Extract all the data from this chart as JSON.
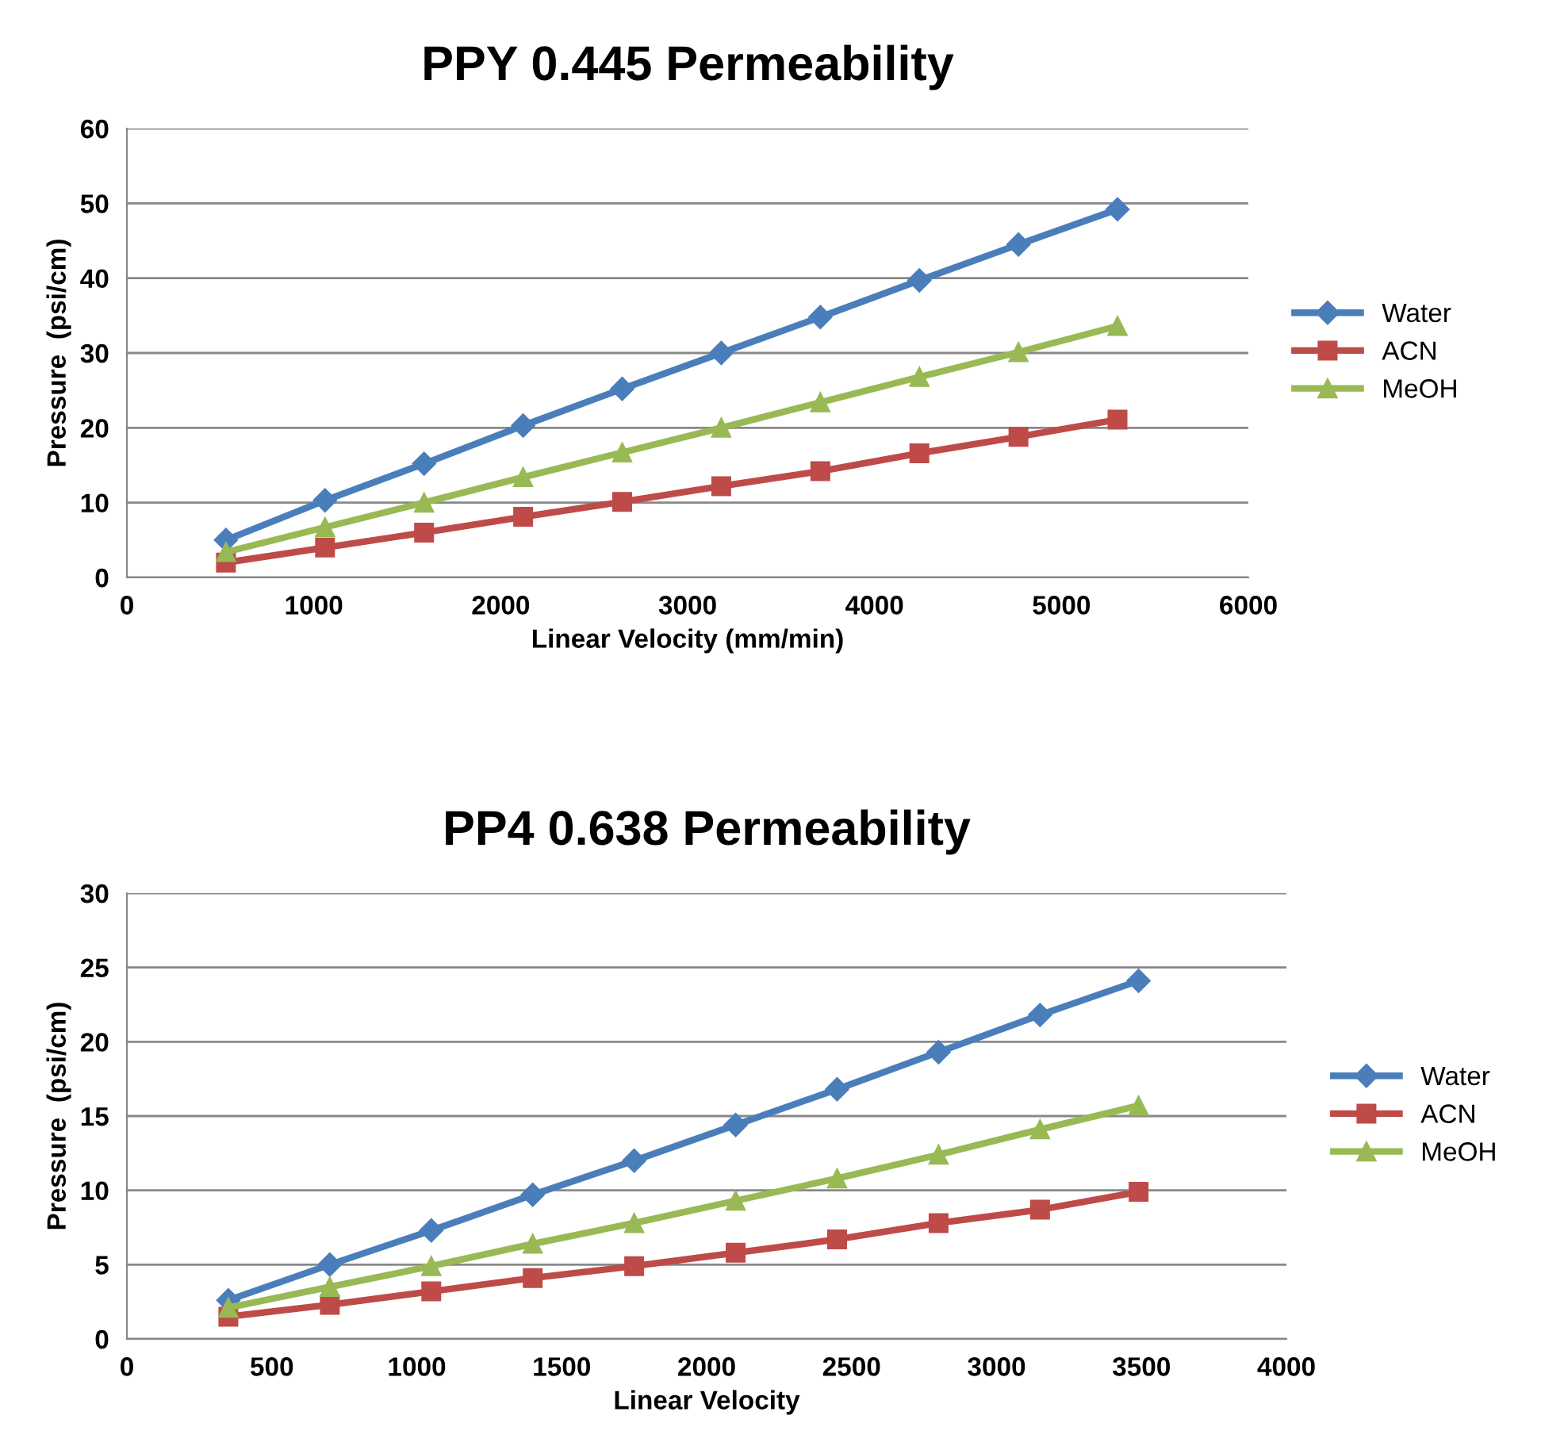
{
  "chart_data": [
    {
      "type": "line",
      "title": "PPY 0.445 Permeability",
      "xlabel": "Linear Velocity (mm/min)",
      "ylabel": "Pressure  (psi/cm)",
      "x": [
        530,
        1060,
        1590,
        2120,
        2650,
        3180,
        3710,
        4240,
        4770,
        5300
      ],
      "series": [
        {
          "name": "Water",
          "color": "#4a7ebb",
          "marker": "diamond",
          "values": [
            5,
            10.3,
            15.2,
            20.3,
            25.2,
            30,
            34.8,
            39.7,
            44.5,
            49.2
          ]
        },
        {
          "name": "ACN",
          "color": "#be4b48",
          "marker": "square",
          "values": [
            2,
            4,
            6,
            8.1,
            10.1,
            12.2,
            14.2,
            16.6,
            18.8,
            21.1
          ]
        },
        {
          "name": "MeOH",
          "color": "#98b954",
          "marker": "triangle",
          "values": [
            3.4,
            6.7,
            10,
            13.4,
            16.7,
            20,
            23.4,
            26.8,
            30.1,
            33.6
          ]
        }
      ],
      "xlim": [
        0,
        6000
      ],
      "xticks": [
        0,
        1000,
        2000,
        3000,
        4000,
        5000,
        6000
      ],
      "ylim": [
        0,
        60
      ],
      "yticks": [
        0,
        10,
        20,
        30,
        40,
        50,
        60
      ],
      "grid": "y",
      "legend": "right"
    },
    {
      "type": "line",
      "title": "PP4 0.638 Permeability",
      "xlabel": "Linear Velocity",
      "ylabel": "Pressure  (psi/cm)",
      "x": [
        350,
        700,
        1050,
        1400,
        1750,
        2100,
        2450,
        2800,
        3150,
        3490
      ],
      "series": [
        {
          "name": "Water",
          "color": "#4a7ebb",
          "marker": "diamond",
          "values": [
            2.6,
            5,
            7.3,
            9.7,
            12,
            14.4,
            16.8,
            19.3,
            21.8,
            24.1
          ]
        },
        {
          "name": "ACN",
          "color": "#be4b48",
          "marker": "square",
          "values": [
            1.5,
            2.3,
            3.2,
            4.1,
            4.9,
            5.8,
            6.7,
            7.8,
            8.7,
            9.9
          ]
        },
        {
          "name": "MeOH",
          "color": "#98b954",
          "marker": "triangle",
          "values": [
            2.1,
            3.5,
            4.9,
            6.4,
            7.8,
            9.3,
            10.8,
            12.4,
            14.1,
            15.7
          ]
        }
      ],
      "xlim": [
        0,
        4000
      ],
      "xticks": [
        0,
        500,
        1000,
        1500,
        2000,
        2500,
        3000,
        3500,
        4000
      ],
      "ylim": [
        0,
        30
      ],
      "yticks": [
        0,
        5,
        10,
        15,
        20,
        25,
        30
      ],
      "grid": "y",
      "legend": "right"
    }
  ]
}
